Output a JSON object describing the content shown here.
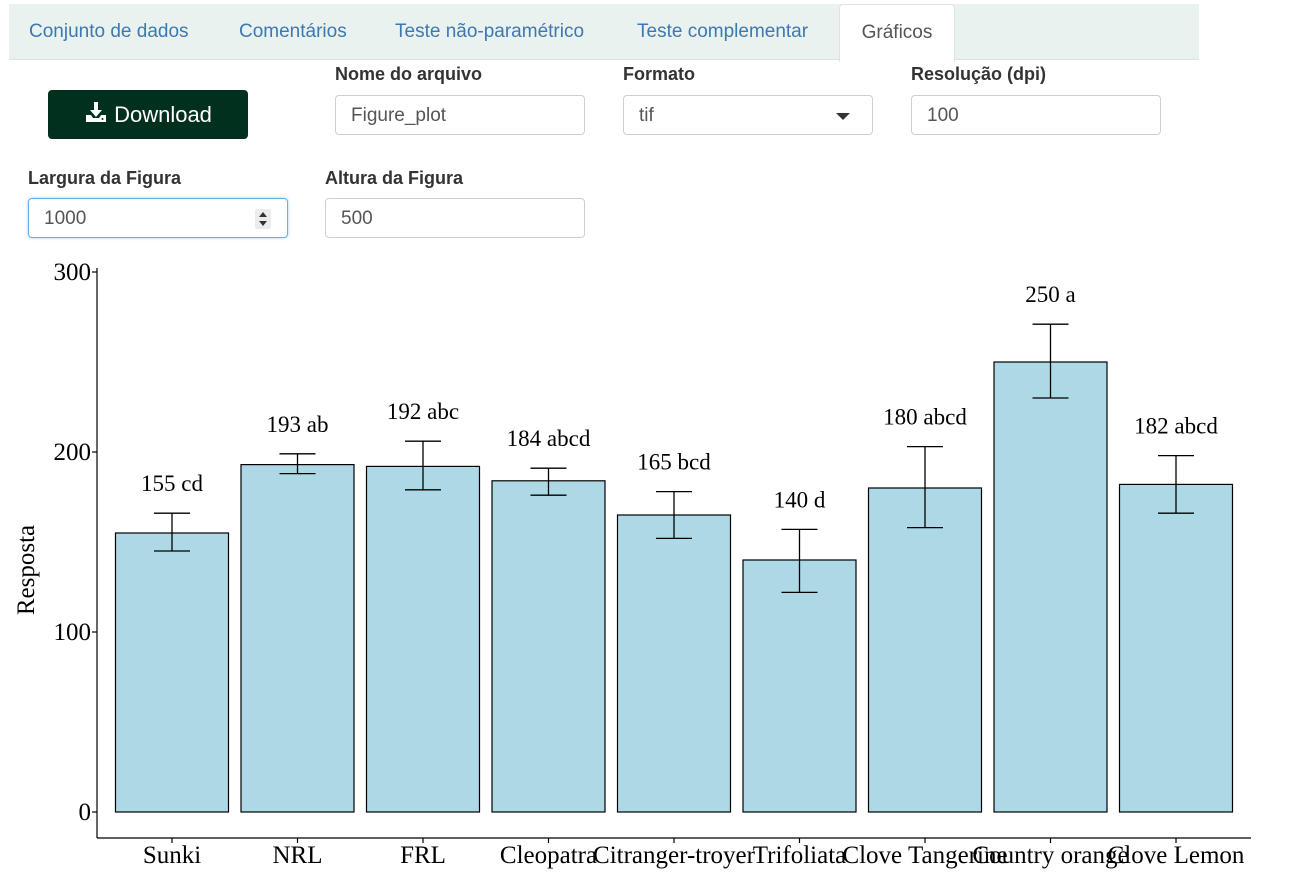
{
  "tabs": [
    {
      "label": "Conjunto de dados",
      "active": false
    },
    {
      "label": "Comentários",
      "active": false
    },
    {
      "label": "Teste não-paramétrico",
      "active": false
    },
    {
      "label": "Teste complementar",
      "active": false
    },
    {
      "label": "Gráficos",
      "active": true
    }
  ],
  "controls": {
    "download_label": "Download",
    "download_icon": "download-icon",
    "filename_label": "Nome do arquivo",
    "filename_value": "Figure_plot",
    "format_label": "Formato",
    "format_value": "tif",
    "resolution_label": "Resolução (dpi)",
    "resolution_value": "100",
    "width_label": "Largura da Figura",
    "width_value": "1000",
    "height_label": "Altura da Figura",
    "height_value": "500"
  },
  "colors": {
    "button_bg": "#01301f",
    "tab_bar_bg": "#e9f2ee",
    "tab_link": "#3c78b4",
    "bar_fill": "#add8e6"
  },
  "chart_data": {
    "type": "bar",
    "categories": [
      "Sunki",
      "NRL",
      "FRL",
      "Cleopatra",
      "Citranger-troyer",
      "Trifoliata",
      "Clove Tangerine",
      "Country orange",
      "Clove Lemon"
    ],
    "values": [
      155,
      193,
      192,
      184,
      165,
      140,
      180,
      250,
      182
    ],
    "error_low": [
      145,
      188,
      179,
      176,
      152,
      122,
      158,
      230,
      166
    ],
    "error_high": [
      166,
      199,
      206,
      191,
      178,
      157,
      203,
      271,
      198
    ],
    "bar_labels": [
      "155 cd",
      "193 ab",
      "192 abc",
      "184 abcd",
      "165 bcd",
      "140 d",
      "180 abcd",
      "250 a",
      "182 abcd"
    ],
    "ylabel": "Resposta",
    "xlabel": "",
    "yticks": [
      "0",
      "100",
      "200",
      "300"
    ],
    "ylim": [
      0,
      300
    ],
    "grid": false
  }
}
